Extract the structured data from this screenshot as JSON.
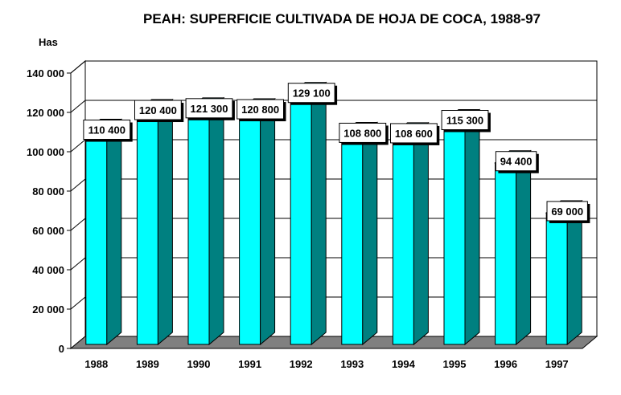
{
  "chart_data": {
    "type": "bar",
    "title": "PEAH: SUPERFICIE CULTIVADA DE HOJA DE COCA, 1988-97",
    "ylabel": "Has",
    "xlabel": "",
    "categories": [
      "1988",
      "1989",
      "1990",
      "1991",
      "1992",
      "1993",
      "1994",
      "1995",
      "1996",
      "1997"
    ],
    "values": [
      110400,
      120400,
      121300,
      120800,
      129100,
      108800,
      108600,
      115300,
      94400,
      69000
    ],
    "data_labels": [
      "110 400",
      "120 400",
      "121 300",
      "120 800",
      "129 100",
      "108 800",
      "108 600",
      "115 300",
      "94 400",
      "69 000"
    ],
    "ylim": [
      0,
      140000
    ],
    "yticks": [
      0,
      20000,
      40000,
      60000,
      80000,
      100000,
      120000,
      140000
    ],
    "ytick_labels": [
      "0",
      "20 000",
      "40 000",
      "60 000",
      "80 000",
      "100 000",
      "120 000",
      "140 000"
    ],
    "grid": true,
    "legend": "none",
    "colors": {
      "bar_front": "#00ffff",
      "bar_side": "#008080",
      "floor": "#808080",
      "grid": "#000000"
    }
  }
}
